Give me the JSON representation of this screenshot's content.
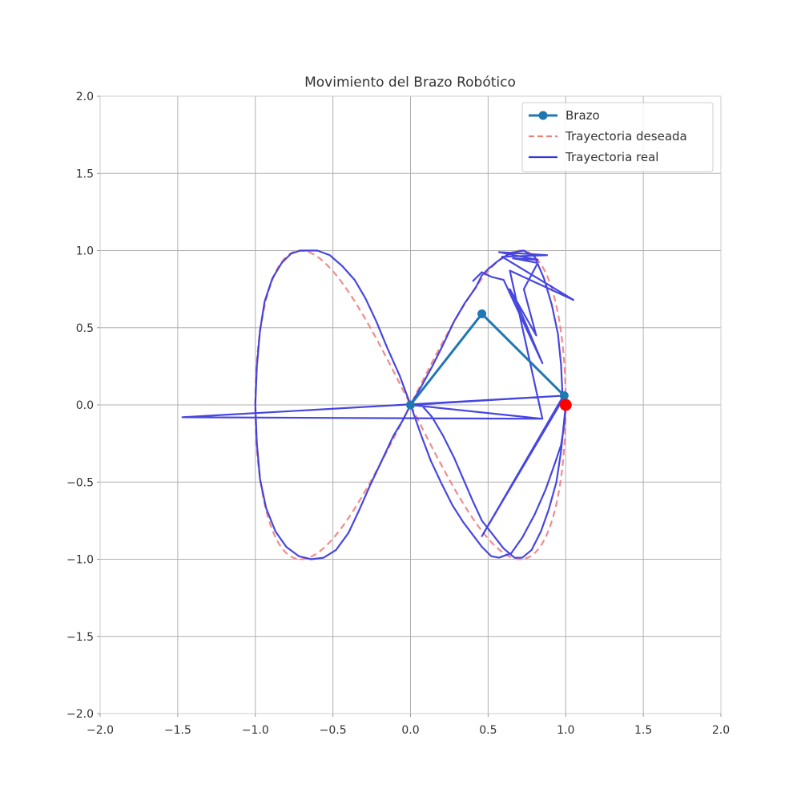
{
  "chart_data": {
    "type": "line",
    "title": "Movimiento del Brazo Robótico",
    "xlabel": "",
    "ylabel": "",
    "xlim": [
      -2.0,
      2.0
    ],
    "ylim": [
      -2.0,
      2.0
    ],
    "xticks": [
      "−2.0",
      "−1.5",
      "−1.0",
      "−0.5",
      "0.0",
      "0.5",
      "1.0",
      "1.5",
      "2.0"
    ],
    "yticks": [
      "−2.0",
      "−1.5",
      "−1.0",
      "−0.5",
      "0.0",
      "0.5",
      "1.0",
      "1.5",
      "2.0"
    ],
    "grid": true,
    "legend_position": "top-right",
    "legend": [
      {
        "label": "Brazo",
        "style": "line-marker",
        "color": "#1f77b4"
      },
      {
        "label": "Trayectoria deseada",
        "style": "dashed",
        "color": "#f08080"
      },
      {
        "label": "Trayectoria real",
        "style": "solid",
        "color": "#3333dd"
      }
    ],
    "series": [
      {
        "name": "Brazo",
        "color": "#1f77b4",
        "x": [
          0.0,
          0.46,
          0.99
        ],
        "y": [
          0.0,
          0.59,
          0.06
        ]
      },
      {
        "name": "Trayectoria deseada",
        "color": "#f08080",
        "param": "lemniscate",
        "x_formula": "cos(t)",
        "y_formula": "sin(2t)"
      },
      {
        "name": "Trayectoria real",
        "color": "#3333dd",
        "x": [
          1.0,
          0.99,
          0.97,
          0.93,
          0.87,
          0.8,
          0.72,
          0.65,
          0.57,
          0.52,
          0.46,
          0.4,
          0.34,
          0.27,
          0.2,
          0.13,
          0.07,
          0.0,
          -0.07,
          -0.15,
          -0.22,
          -0.29,
          -0.36,
          -0.44,
          -0.52,
          -0.6,
          -0.66,
          -0.71,
          -0.77,
          -0.83,
          -0.89,
          -0.94,
          -0.97,
          -0.99,
          -1.0,
          -0.99,
          -0.97,
          -0.93,
          -0.87,
          -0.8,
          -0.72,
          -0.64,
          -0.56,
          -0.48,
          -0.4,
          -0.33,
          -0.26,
          -0.18,
          -0.11,
          -0.05,
          0.0,
          0.07,
          0.14,
          0.21,
          0.28,
          0.35,
          0.42,
          0.46,
          0.5,
          0.56,
          0.62,
          0.67,
          0.73,
          0.8,
          0.86,
          0.91,
          0.95,
          0.97,
          0.98,
          0.46,
          0.99,
          1.0,
          0.99,
          0.97,
          0.94,
          0.89,
          0.84,
          0.78,
          0.72,
          0.67,
          0.6,
          0.53,
          0.46,
          0.4,
          0.34,
          0.28,
          0.21,
          0.14,
          0.07,
          0.0,
          0.85,
          -1.47,
          0.99,
          0.0,
          0.85,
          0.64,
          1.05,
          0.59,
          0.88,
          0.57,
          0.82,
          0.66,
          0.82,
          0.73,
          0.81,
          0.64,
          0.72,
          0.72,
          0.85,
          0.6,
          0.52,
          0.46,
          0.4
        ],
        "y": [
          0.0,
          -0.13,
          -0.26,
          -0.38,
          -0.55,
          -0.71,
          -0.86,
          -0.96,
          -0.99,
          -0.98,
          -0.92,
          -0.84,
          -0.76,
          -0.65,
          -0.51,
          -0.36,
          -0.2,
          0.0,
          0.19,
          0.37,
          0.54,
          0.69,
          0.81,
          0.9,
          0.97,
          1.0,
          1.0,
          1.0,
          0.98,
          0.92,
          0.82,
          0.67,
          0.48,
          0.25,
          0.0,
          -0.25,
          -0.48,
          -0.67,
          -0.82,
          -0.92,
          -0.98,
          -1.0,
          -0.99,
          -0.94,
          -0.83,
          -0.68,
          -0.52,
          -0.35,
          -0.2,
          -0.1,
          0.0,
          0.12,
          0.25,
          0.39,
          0.54,
          0.66,
          0.76,
          0.84,
          0.88,
          0.93,
          0.97,
          0.99,
          1.0,
          0.96,
          0.82,
          0.65,
          0.46,
          0.26,
          0.05,
          -0.85,
          0.05,
          0.0,
          -0.1,
          -0.3,
          -0.5,
          -0.68,
          -0.82,
          -0.94,
          -0.99,
          -0.99,
          -0.93,
          -0.84,
          -0.75,
          -0.62,
          -0.48,
          -0.34,
          -0.2,
          -0.08,
          0.0,
          0.0,
          -0.09,
          -0.08,
          0.06,
          0.0,
          -0.09,
          0.87,
          0.68,
          0.96,
          0.97,
          0.99,
          0.94,
          0.95,
          0.92,
          0.75,
          0.45,
          0.75,
          0.58,
          0.58,
          0.27,
          0.81,
          0.83,
          0.86,
          0.8
        ]
      }
    ],
    "target_point": {
      "x": 1.0,
      "y": 0.0,
      "color": "#ff0000"
    }
  }
}
